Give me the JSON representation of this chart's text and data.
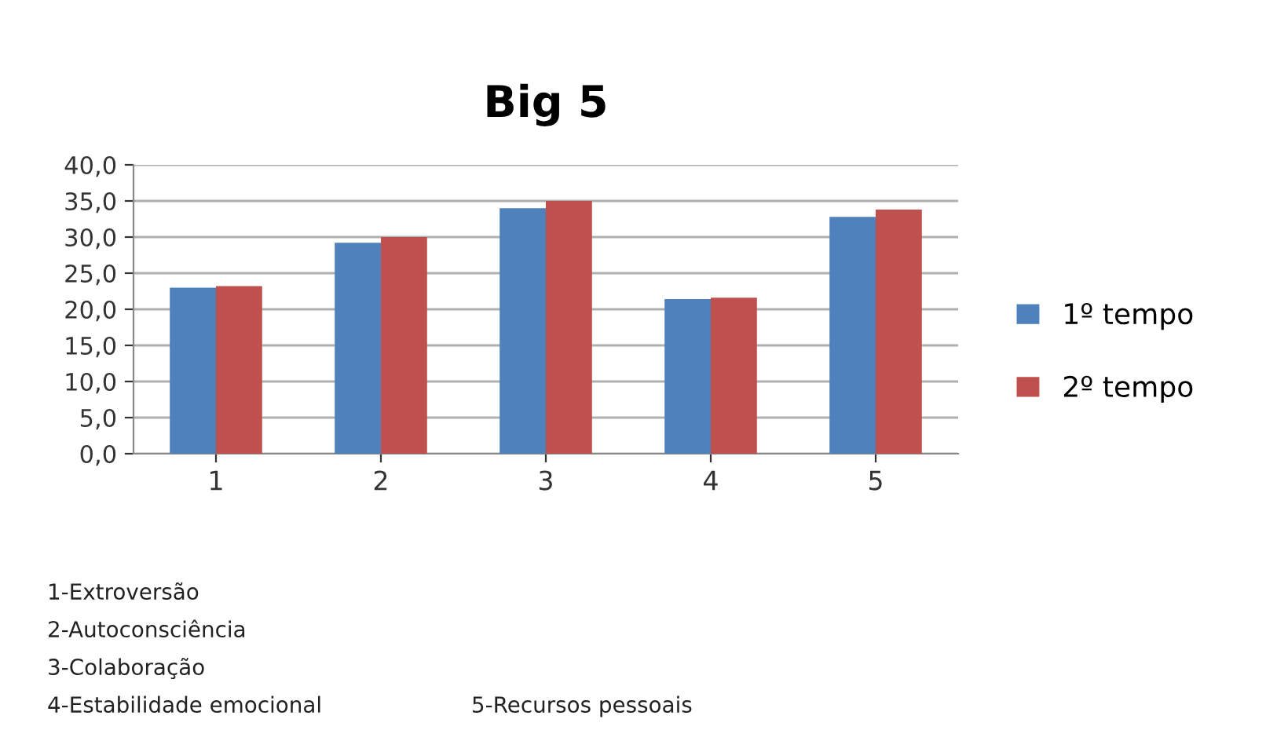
{
  "chart_data": {
    "type": "bar",
    "title": "Big 5",
    "categories": [
      "1",
      "2",
      "3",
      "4",
      "5"
    ],
    "series": [
      {
        "name": "1º tempo",
        "color": "#4f81bd",
        "values": [
          23.0,
          29.2,
          34.0,
          21.4,
          32.8
        ]
      },
      {
        "name": "2º tempo",
        "color": "#c0504d",
        "values": [
          23.2,
          30.0,
          35.0,
          21.6,
          33.8
        ]
      }
    ],
    "ylim": [
      0,
      40
    ],
    "yticks": [
      {
        "value": 0,
        "label": "0,0"
      },
      {
        "value": 5,
        "label": "5,0"
      },
      {
        "value": 10,
        "label": "10,0"
      },
      {
        "value": 15,
        "label": "15,0"
      },
      {
        "value": 20,
        "label": "20,0"
      },
      {
        "value": 25,
        "label": "25,0"
      },
      {
        "value": 30,
        "label": "30,0"
      },
      {
        "value": 35,
        "label": "35,0"
      },
      {
        "value": 40,
        "label": "40,0"
      }
    ],
    "grid": "y",
    "legend": "right",
    "annotations": [
      "1-Extroversão",
      "2-Autoconsciência",
      "3-Colaboração",
      "4-Estabilidade emocional",
      "5-Recursos pessoais"
    ]
  }
}
